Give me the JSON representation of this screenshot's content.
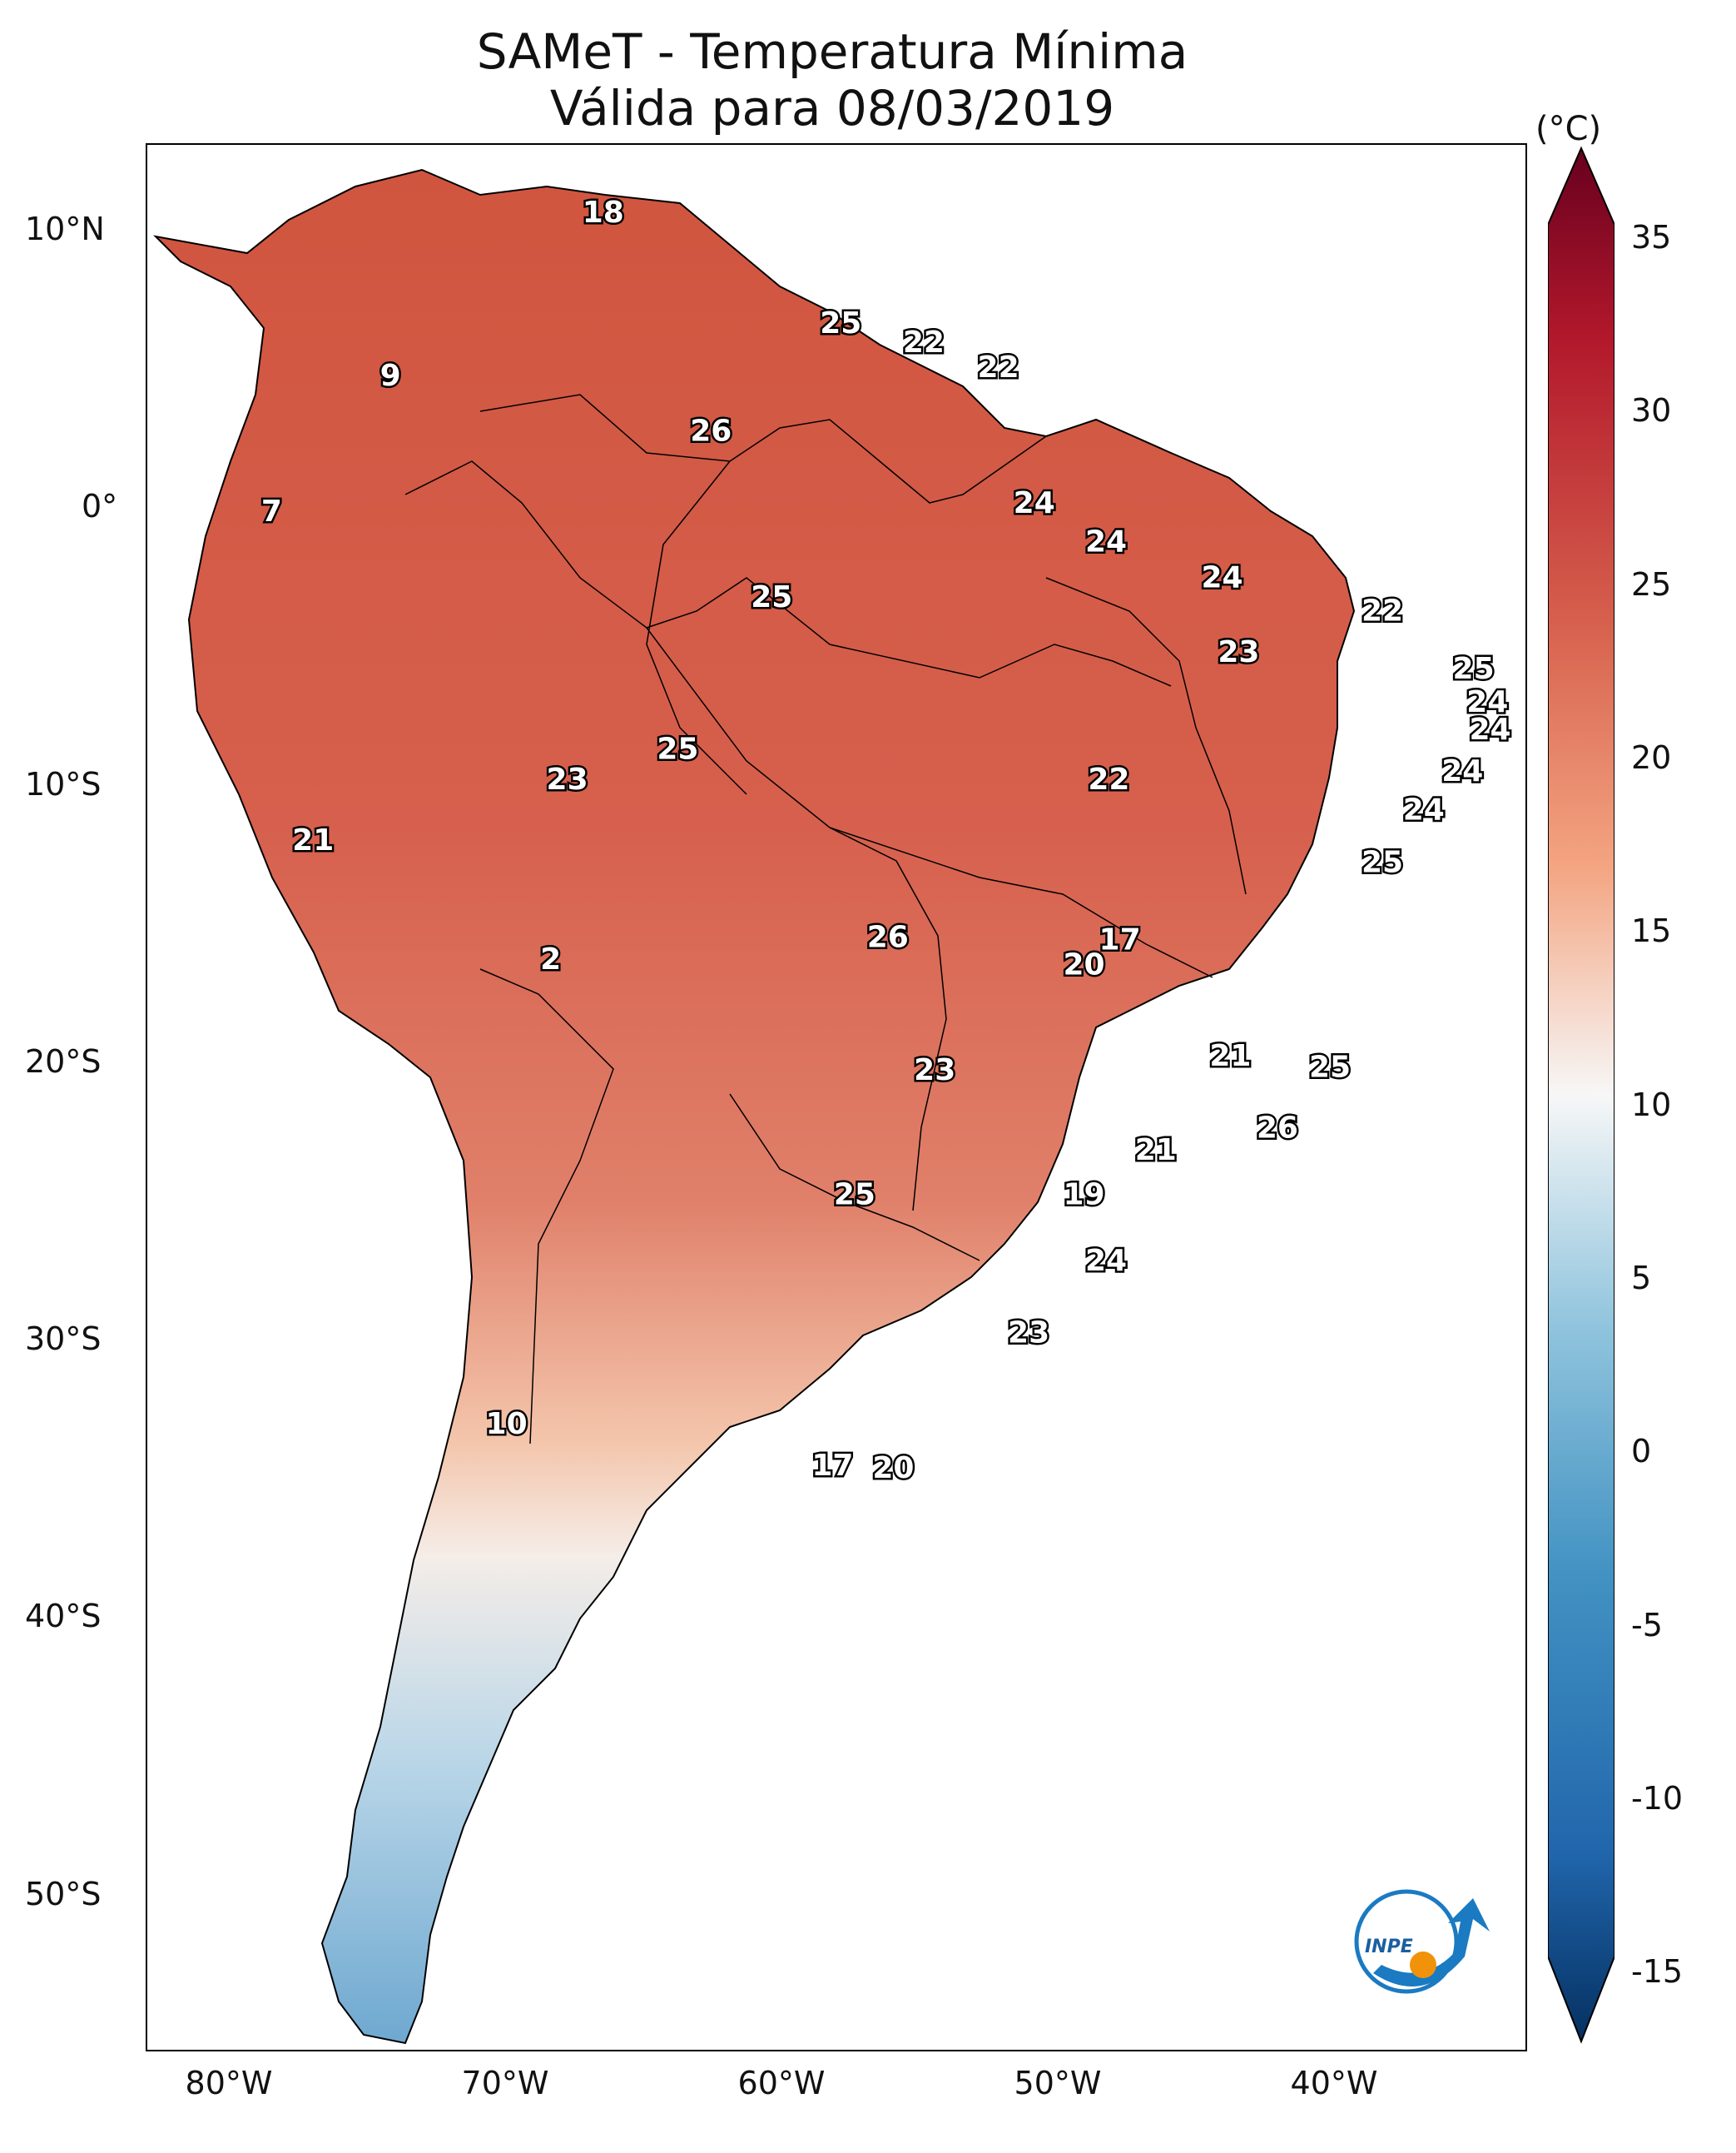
{
  "title": "SAMeT - Temperatura Mínima",
  "subtitle": "Válida para 08/03/2019",
  "colorbar": {
    "unit": "(°C)",
    "ticks": [
      "35",
      "30",
      "25",
      "20",
      "15",
      "10",
      "5",
      "0",
      "-5",
      "-10",
      "-15"
    ],
    "range": [
      -15,
      35
    ],
    "colors": {
      "cold": "#053061",
      "neutral": "#f7f7f7",
      "hot": "#67001f"
    }
  },
  "axes": {
    "lon_ticks": [
      "80°W",
      "70°W",
      "60°W",
      "50°W",
      "40°W"
    ],
    "lat_ticks": [
      "10°N",
      "0°",
      "10°S",
      "20°S",
      "30°S",
      "40°S",
      "50°S"
    ]
  },
  "map_extent": {
    "lon": [
      -83,
      -33
    ],
    "lat": [
      -56,
      13
    ]
  },
  "contour_labels": [
    {
      "text": "18",
      "lon": -66.5,
      "lat": 10.5
    },
    {
      "text": "9",
      "lon": -74.2,
      "lat": 4.6
    },
    {
      "text": "7",
      "lon": -78.5,
      "lat": -0.3
    },
    {
      "text": "25",
      "lon": -57.9,
      "lat": 6.5
    },
    {
      "text": "22",
      "lon": -54.9,
      "lat": 5.8
    },
    {
      "text": "22",
      "lon": -52.2,
      "lat": 4.9
    },
    {
      "text": "26",
      "lon": -62.6,
      "lat": 2.6
    },
    {
      "text": "24",
      "lon": -50.9,
      "lat": 0.0
    },
    {
      "text": "24",
      "lon": -48.3,
      "lat": -1.4
    },
    {
      "text": "24",
      "lon": -44.1,
      "lat": -2.7
    },
    {
      "text": "22",
      "lon": -38.3,
      "lat": -3.9
    },
    {
      "text": "25",
      "lon": -60.4,
      "lat": -3.4
    },
    {
      "text": "23",
      "lon": -43.5,
      "lat": -5.4
    },
    {
      "text": "25",
      "lon": -35.0,
      "lat": -6.0
    },
    {
      "text": "24",
      "lon": -34.5,
      "lat": -7.2
    },
    {
      "text": "24",
      "lon": -34.4,
      "lat": -8.2
    },
    {
      "text": "25",
      "lon": -63.8,
      "lat": -8.9
    },
    {
      "text": "23",
      "lon": -67.8,
      "lat": -10.0
    },
    {
      "text": "22",
      "lon": -48.2,
      "lat": -10.0
    },
    {
      "text": "24",
      "lon": -35.4,
      "lat": -9.7
    },
    {
      "text": "24",
      "lon": -36.8,
      "lat": -11.1
    },
    {
      "text": "21",
      "lon": -77.0,
      "lat": -12.2
    },
    {
      "text": "25",
      "lon": -38.3,
      "lat": -13.0
    },
    {
      "text": "26",
      "lon": -56.2,
      "lat": -15.7
    },
    {
      "text": "17",
      "lon": -47.8,
      "lat": -15.8
    },
    {
      "text": "20",
      "lon": -49.1,
      "lat": -16.7
    },
    {
      "text": "2",
      "lon": -68.4,
      "lat": -16.5
    },
    {
      "text": "21",
      "lon": -43.8,
      "lat": -20.0
    },
    {
      "text": "25",
      "lon": -40.2,
      "lat": -20.4
    },
    {
      "text": "23",
      "lon": -54.5,
      "lat": -20.5
    },
    {
      "text": "26",
      "lon": -42.1,
      "lat": -22.6
    },
    {
      "text": "21",
      "lon": -46.5,
      "lat": -23.4
    },
    {
      "text": "25",
      "lon": -57.4,
      "lat": -25.0
    },
    {
      "text": "19",
      "lon": -49.1,
      "lat": -25.0
    },
    {
      "text": "24",
      "lon": -48.3,
      "lat": -27.4
    },
    {
      "text": "23",
      "lon": -51.1,
      "lat": -30.0
    },
    {
      "text": "10",
      "lon": -70.0,
      "lat": -33.3
    },
    {
      "text": "17",
      "lon": -58.2,
      "lat": -34.8
    },
    {
      "text": "20",
      "lon": -56.0,
      "lat": -34.9
    }
  ],
  "logo": {
    "text": "INPE"
  }
}
